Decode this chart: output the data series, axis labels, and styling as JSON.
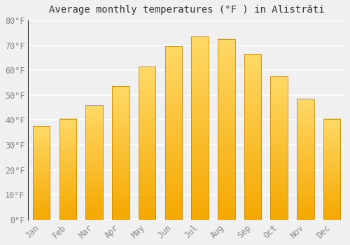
{
  "title": "Average monthly temperatures (°F ) in Alistrăti",
  "months": [
    "Jan",
    "Feb",
    "Mar",
    "Apr",
    "May",
    "Jun",
    "Jul",
    "Aug",
    "Sep",
    "Oct",
    "Nov",
    "Dec"
  ],
  "values": [
    37.5,
    40.5,
    46.0,
    53.5,
    61.5,
    69.5,
    73.5,
    72.5,
    66.5,
    57.5,
    48.5,
    40.5
  ],
  "bar_color_bottom": "#F5A800",
  "bar_color_top": "#FFD966",
  "bar_edge_color": "#CC8800",
  "ylim": [
    0,
    80
  ],
  "yticks": [
    0,
    10,
    20,
    30,
    40,
    50,
    60,
    70,
    80
  ],
  "background_color": "#f0f0f0",
  "grid_color": "#ffffff",
  "title_fontsize": 10,
  "tick_fontsize": 8.5,
  "font_family": "monospace",
  "bar_width": 0.65,
  "figsize": [
    5.0,
    3.5
  ],
  "dpi": 100
}
